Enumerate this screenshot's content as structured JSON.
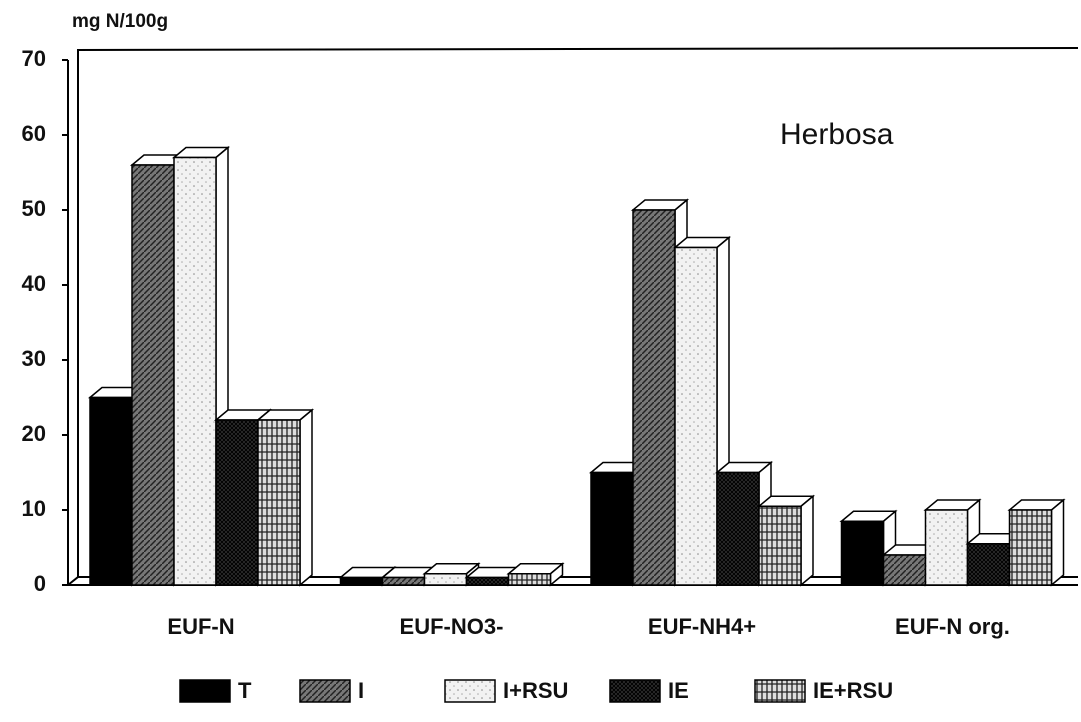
{
  "chart_data": {
    "type": "bar3d",
    "y_label": "mg N/100g",
    "annotation": "Herbosa",
    "categories": [
      "EUF-N",
      "EUF-NO3-",
      "EUF-NH4+",
      "EUF-N org."
    ],
    "series": [
      {
        "name": "T",
        "color": "#000000",
        "values": [
          25,
          1,
          15,
          8.5
        ]
      },
      {
        "name": "I",
        "color": "#777777",
        "values": [
          56,
          1,
          50,
          4
        ]
      },
      {
        "name": "I+RSU",
        "color": "#f2f2f2",
        "values": [
          57,
          1.5,
          45,
          10
        ]
      },
      {
        "name": "IE",
        "color": "#333333",
        "values": [
          22,
          1,
          15,
          5.5
        ]
      },
      {
        "name": "IE+RSU",
        "color": "#dddddd",
        "values": [
          22,
          1.5,
          10.5,
          10
        ]
      }
    ],
    "ylim": [
      0,
      70
    ],
    "yticks": [
      0,
      10,
      20,
      30,
      40,
      50,
      60,
      70
    ]
  }
}
